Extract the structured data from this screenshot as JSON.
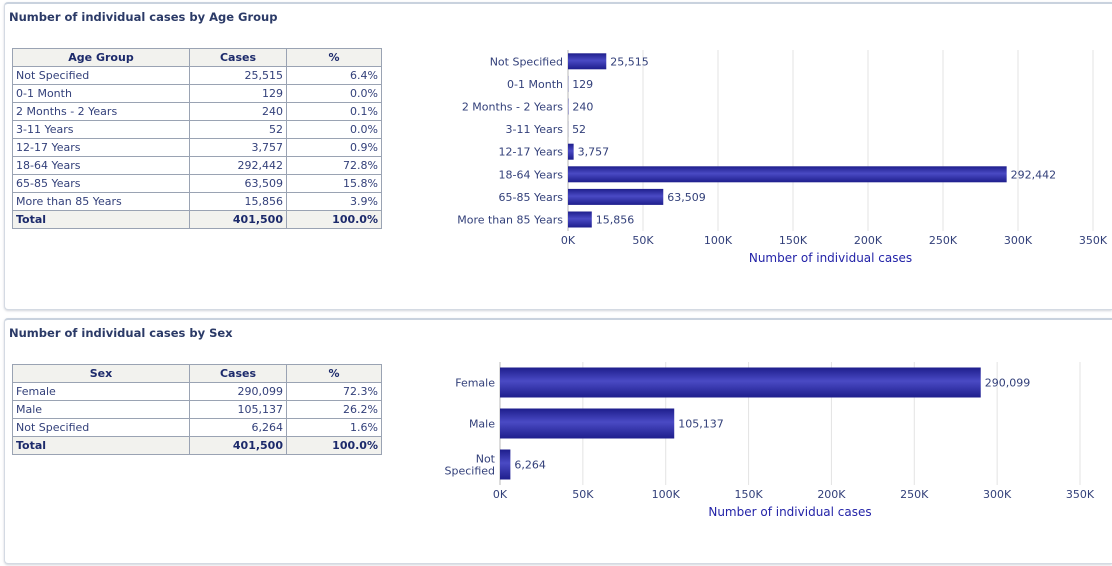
{
  "panels": [
    {
      "title": "Number of individual cases by Age Group",
      "table": {
        "headers": [
          "Age Group",
          "Cases",
          "%"
        ],
        "rows": [
          [
            "Not Specified",
            "25,515",
            "6.4%"
          ],
          [
            "0-1 Month",
            "129",
            "0.0%"
          ],
          [
            "2 Months - 2 Years",
            "240",
            "0.1%"
          ],
          [
            "3-11 Years",
            "52",
            "0.0%"
          ],
          [
            "12-17 Years",
            "3,757",
            "0.9%"
          ],
          [
            "18-64 Years",
            "292,442",
            "72.8%"
          ],
          [
            "65-85 Years",
            "63,509",
            "15.8%"
          ],
          [
            "More than 85 Years",
            "15,856",
            "3.9%"
          ]
        ],
        "total": [
          "Total",
          "401,500",
          "100.0%"
        ]
      }
    },
    {
      "title": "Number of individual cases by Sex",
      "table": {
        "headers": [
          "Sex",
          "Cases",
          "%"
        ],
        "rows": [
          [
            "Female",
            "290,099",
            "72.3%"
          ],
          [
            "Male",
            "105,137",
            "26.2%"
          ],
          [
            "Not Specified",
            "6,264",
            "1.6%"
          ]
        ],
        "total": [
          "Total",
          "401,500",
          "100.0%"
        ]
      }
    }
  ],
  "colors": {
    "bar": "#1e1e8c",
    "bar_light": "#4a4ac4",
    "grid": "#e3e3e3",
    "axis_label": "#2323a8",
    "text": "#33407a"
  },
  "chart_data": [
    {
      "type": "bar",
      "orientation": "horizontal",
      "categories": [
        "Not Specified",
        "0-1 Month",
        "2 Months - 2 Years",
        "3-11 Years",
        "12-17 Years",
        "18-64 Years",
        "65-85 Years",
        "More than 85 Years"
      ],
      "values": [
        25515,
        129,
        240,
        52,
        3757,
        292442,
        63509,
        15856
      ],
      "value_labels": [
        "25,515",
        "129",
        "240",
        "52",
        "3,757",
        "292,442",
        "63,509",
        "15,856"
      ],
      "xlabel": "Number of individual cases",
      "xlim": [
        0,
        350000
      ],
      "ticks": [
        0,
        50000,
        100000,
        150000,
        200000,
        250000,
        300000,
        350000
      ],
      "tick_labels": [
        "0K",
        "50K",
        "100K",
        "150K",
        "200K",
        "250K",
        "300K",
        "350K"
      ],
      "grid": true
    },
    {
      "type": "bar",
      "orientation": "horizontal",
      "categories": [
        "Female",
        "Male",
        "Not Specified"
      ],
      "values": [
        290099,
        105137,
        6264
      ],
      "value_labels": [
        "290,099",
        "105,137",
        "6,264"
      ],
      "xlabel": "Number of individual cases",
      "xlim": [
        0,
        350000
      ],
      "ticks": [
        0,
        50000,
        100000,
        150000,
        200000,
        250000,
        300000,
        350000
      ],
      "tick_labels": [
        "0K",
        "50K",
        "100K",
        "150K",
        "200K",
        "250K",
        "300K",
        "350K"
      ],
      "grid": true
    }
  ]
}
